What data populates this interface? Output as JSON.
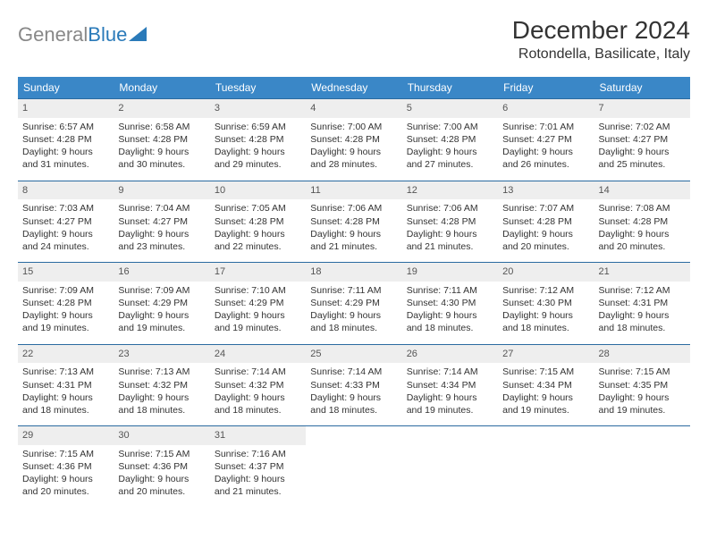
{
  "logo": {
    "text1": "General",
    "text2": "Blue"
  },
  "title": "December 2024",
  "location": "Rotondella, Basilicate, Italy",
  "colors": {
    "header_bg": "#3a87c7",
    "header_text": "#ffffff",
    "daynum_bg": "#eeeeee",
    "week_divider": "#2a6aa0",
    "body_text": "#333333",
    "logo_gray": "#888888",
    "logo_blue": "#2a7ab9",
    "background": "#ffffff"
  },
  "typography": {
    "title_fontsize": 28,
    "location_fontsize": 16,
    "dayheader_fontsize": 12,
    "cell_fontsize": 10.5,
    "font_family": "Arial"
  },
  "day_headers": [
    "Sunday",
    "Monday",
    "Tuesday",
    "Wednesday",
    "Thursday",
    "Friday",
    "Saturday"
  ],
  "weeks": [
    [
      {
        "num": "1",
        "sunrise": "Sunrise: 6:57 AM",
        "sunset": "Sunset: 4:28 PM",
        "daylight1": "Daylight: 9 hours",
        "daylight2": "and 31 minutes."
      },
      {
        "num": "2",
        "sunrise": "Sunrise: 6:58 AM",
        "sunset": "Sunset: 4:28 PM",
        "daylight1": "Daylight: 9 hours",
        "daylight2": "and 30 minutes."
      },
      {
        "num": "3",
        "sunrise": "Sunrise: 6:59 AM",
        "sunset": "Sunset: 4:28 PM",
        "daylight1": "Daylight: 9 hours",
        "daylight2": "and 29 minutes."
      },
      {
        "num": "4",
        "sunrise": "Sunrise: 7:00 AM",
        "sunset": "Sunset: 4:28 PM",
        "daylight1": "Daylight: 9 hours",
        "daylight2": "and 28 minutes."
      },
      {
        "num": "5",
        "sunrise": "Sunrise: 7:00 AM",
        "sunset": "Sunset: 4:28 PM",
        "daylight1": "Daylight: 9 hours",
        "daylight2": "and 27 minutes."
      },
      {
        "num": "6",
        "sunrise": "Sunrise: 7:01 AM",
        "sunset": "Sunset: 4:27 PM",
        "daylight1": "Daylight: 9 hours",
        "daylight2": "and 26 minutes."
      },
      {
        "num": "7",
        "sunrise": "Sunrise: 7:02 AM",
        "sunset": "Sunset: 4:27 PM",
        "daylight1": "Daylight: 9 hours",
        "daylight2": "and 25 minutes."
      }
    ],
    [
      {
        "num": "8",
        "sunrise": "Sunrise: 7:03 AM",
        "sunset": "Sunset: 4:27 PM",
        "daylight1": "Daylight: 9 hours",
        "daylight2": "and 24 minutes."
      },
      {
        "num": "9",
        "sunrise": "Sunrise: 7:04 AM",
        "sunset": "Sunset: 4:27 PM",
        "daylight1": "Daylight: 9 hours",
        "daylight2": "and 23 minutes."
      },
      {
        "num": "10",
        "sunrise": "Sunrise: 7:05 AM",
        "sunset": "Sunset: 4:28 PM",
        "daylight1": "Daylight: 9 hours",
        "daylight2": "and 22 minutes."
      },
      {
        "num": "11",
        "sunrise": "Sunrise: 7:06 AM",
        "sunset": "Sunset: 4:28 PM",
        "daylight1": "Daylight: 9 hours",
        "daylight2": "and 21 minutes."
      },
      {
        "num": "12",
        "sunrise": "Sunrise: 7:06 AM",
        "sunset": "Sunset: 4:28 PM",
        "daylight1": "Daylight: 9 hours",
        "daylight2": "and 21 minutes."
      },
      {
        "num": "13",
        "sunrise": "Sunrise: 7:07 AM",
        "sunset": "Sunset: 4:28 PM",
        "daylight1": "Daylight: 9 hours",
        "daylight2": "and 20 minutes."
      },
      {
        "num": "14",
        "sunrise": "Sunrise: 7:08 AM",
        "sunset": "Sunset: 4:28 PM",
        "daylight1": "Daylight: 9 hours",
        "daylight2": "and 20 minutes."
      }
    ],
    [
      {
        "num": "15",
        "sunrise": "Sunrise: 7:09 AM",
        "sunset": "Sunset: 4:28 PM",
        "daylight1": "Daylight: 9 hours",
        "daylight2": "and 19 minutes."
      },
      {
        "num": "16",
        "sunrise": "Sunrise: 7:09 AM",
        "sunset": "Sunset: 4:29 PM",
        "daylight1": "Daylight: 9 hours",
        "daylight2": "and 19 minutes."
      },
      {
        "num": "17",
        "sunrise": "Sunrise: 7:10 AM",
        "sunset": "Sunset: 4:29 PM",
        "daylight1": "Daylight: 9 hours",
        "daylight2": "and 19 minutes."
      },
      {
        "num": "18",
        "sunrise": "Sunrise: 7:11 AM",
        "sunset": "Sunset: 4:29 PM",
        "daylight1": "Daylight: 9 hours",
        "daylight2": "and 18 minutes."
      },
      {
        "num": "19",
        "sunrise": "Sunrise: 7:11 AM",
        "sunset": "Sunset: 4:30 PM",
        "daylight1": "Daylight: 9 hours",
        "daylight2": "and 18 minutes."
      },
      {
        "num": "20",
        "sunrise": "Sunrise: 7:12 AM",
        "sunset": "Sunset: 4:30 PM",
        "daylight1": "Daylight: 9 hours",
        "daylight2": "and 18 minutes."
      },
      {
        "num": "21",
        "sunrise": "Sunrise: 7:12 AM",
        "sunset": "Sunset: 4:31 PM",
        "daylight1": "Daylight: 9 hours",
        "daylight2": "and 18 minutes."
      }
    ],
    [
      {
        "num": "22",
        "sunrise": "Sunrise: 7:13 AM",
        "sunset": "Sunset: 4:31 PM",
        "daylight1": "Daylight: 9 hours",
        "daylight2": "and 18 minutes."
      },
      {
        "num": "23",
        "sunrise": "Sunrise: 7:13 AM",
        "sunset": "Sunset: 4:32 PM",
        "daylight1": "Daylight: 9 hours",
        "daylight2": "and 18 minutes."
      },
      {
        "num": "24",
        "sunrise": "Sunrise: 7:14 AM",
        "sunset": "Sunset: 4:32 PM",
        "daylight1": "Daylight: 9 hours",
        "daylight2": "and 18 minutes."
      },
      {
        "num": "25",
        "sunrise": "Sunrise: 7:14 AM",
        "sunset": "Sunset: 4:33 PM",
        "daylight1": "Daylight: 9 hours",
        "daylight2": "and 18 minutes."
      },
      {
        "num": "26",
        "sunrise": "Sunrise: 7:14 AM",
        "sunset": "Sunset: 4:34 PM",
        "daylight1": "Daylight: 9 hours",
        "daylight2": "and 19 minutes."
      },
      {
        "num": "27",
        "sunrise": "Sunrise: 7:15 AM",
        "sunset": "Sunset: 4:34 PM",
        "daylight1": "Daylight: 9 hours",
        "daylight2": "and 19 minutes."
      },
      {
        "num": "28",
        "sunrise": "Sunrise: 7:15 AM",
        "sunset": "Sunset: 4:35 PM",
        "daylight1": "Daylight: 9 hours",
        "daylight2": "and 19 minutes."
      }
    ],
    [
      {
        "num": "29",
        "sunrise": "Sunrise: 7:15 AM",
        "sunset": "Sunset: 4:36 PM",
        "daylight1": "Daylight: 9 hours",
        "daylight2": "and 20 minutes."
      },
      {
        "num": "30",
        "sunrise": "Sunrise: 7:15 AM",
        "sunset": "Sunset: 4:36 PM",
        "daylight1": "Daylight: 9 hours",
        "daylight2": "and 20 minutes."
      },
      {
        "num": "31",
        "sunrise": "Sunrise: 7:16 AM",
        "sunset": "Sunset: 4:37 PM",
        "daylight1": "Daylight: 9 hours",
        "daylight2": "and 21 minutes."
      },
      null,
      null,
      null,
      null
    ]
  ]
}
